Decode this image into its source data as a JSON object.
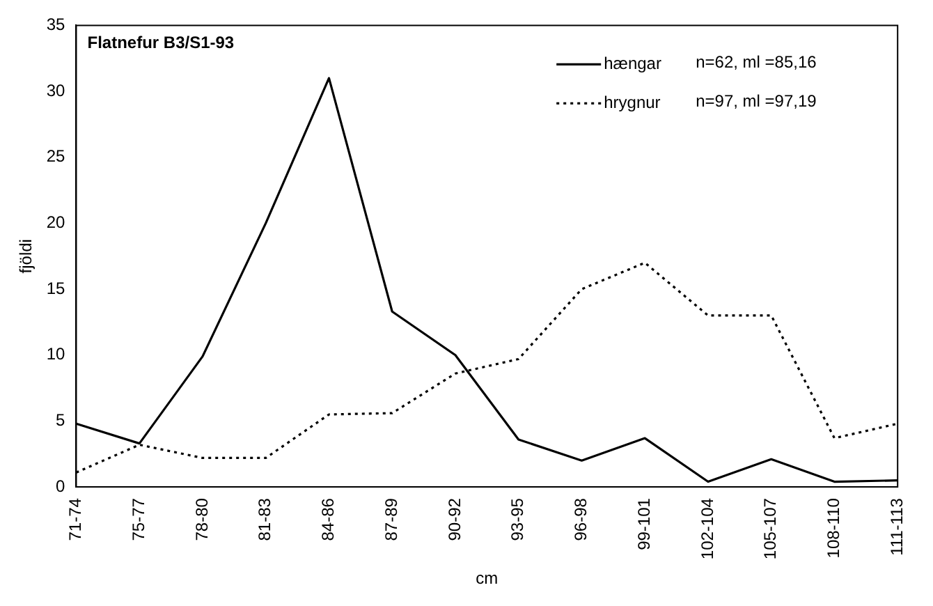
{
  "chart_data": {
    "type": "line",
    "title": "Flatnefur B3/S1-93",
    "xlabel": "cm",
    "ylabel": "fjöldi",
    "categories": [
      "71-74",
      "75-77",
      "78-80",
      "81-83",
      "84-86",
      "87-89",
      "90-92",
      "93-95",
      "96-98",
      "99-101",
      "102-104",
      "105-107",
      "108-110",
      "111-113"
    ],
    "series": [
      {
        "name": "hængar",
        "color": "#000000",
        "line_style": "solid",
        "values": [
          4.8,
          3.3,
          9.9,
          20,
          31,
          13.3,
          10,
          3.6,
          2,
          3.7,
          0.4,
          2.1,
          0.4,
          0.5
        ]
      },
      {
        "name": "hrygnur",
        "color": "#000000",
        "line_style": "dotted",
        "values": [
          1.1,
          3.2,
          2.2,
          2.2,
          5.5,
          5.6,
          8.6,
          9.7,
          15,
          17,
          13,
          13,
          3.7,
          4.8
        ]
      }
    ],
    "annotations": [
      "n=62, ml =85,16",
      "n=97, ml =97,19"
    ],
    "ylim": [
      0,
      35
    ],
    "yticks": [
      0,
      5,
      10,
      15,
      20,
      25,
      30,
      35
    ],
    "grid": false,
    "legend": "top right",
    "marker": "none"
  }
}
